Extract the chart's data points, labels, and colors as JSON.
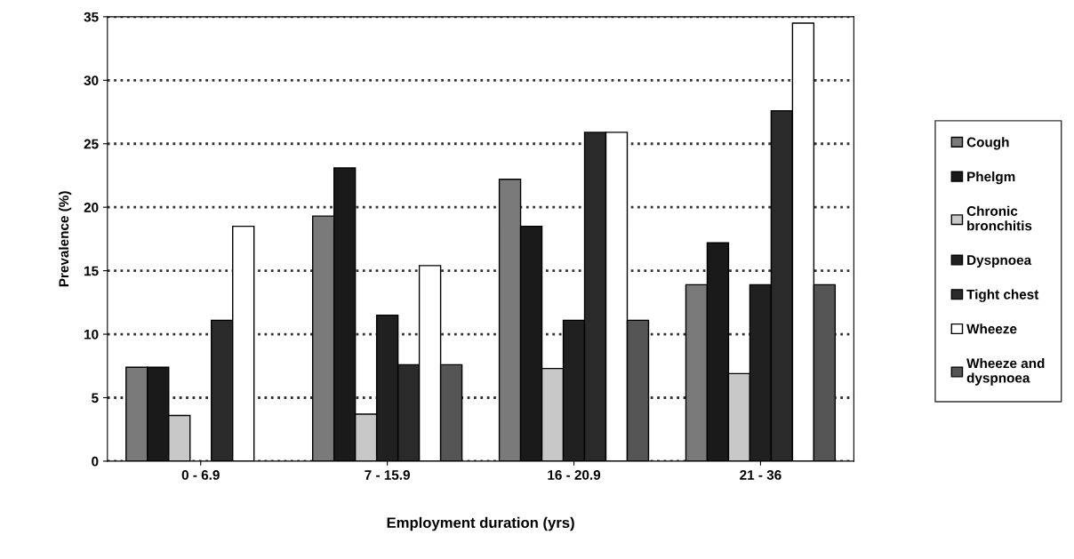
{
  "chart_data": {
    "type": "bar",
    "xlabel": "Employment duration (yrs)",
    "ylabel": "Prevalence (%)",
    "categories": [
      "0 - 6.9",
      "7 - 15.9",
      "16 - 20.9",
      "21 - 36"
    ],
    "series": [
      {
        "name": "Cough",
        "color": "#7a7a7a",
        "values": [
          7.4,
          19.3,
          22.2,
          13.9
        ]
      },
      {
        "name": "Phelgm",
        "color": "#1a1a1a",
        "values": [
          7.4,
          23.1,
          18.5,
          17.2
        ]
      },
      {
        "name": "Chronic bronchitis",
        "color": "#c8c8c8",
        "values": [
          3.6,
          3.7,
          7.3,
          6.9
        ]
      },
      {
        "name": "Dyspnoea",
        "color": "#202020",
        "values": [
          0,
          11.5,
          11.1,
          13.9
        ]
      },
      {
        "name": "Tight chest",
        "color": "#2a2a2a",
        "values": [
          11.1,
          7.6,
          25.9,
          27.6
        ]
      },
      {
        "name": "Wheeze",
        "color": "#ffffff",
        "values": [
          18.5,
          15.4,
          25.9,
          34.5
        ]
      },
      {
        "name": "Wheeze and dyspnoea",
        "color": "#555555",
        "values": [
          0,
          7.6,
          11.1,
          13.9
        ]
      }
    ],
    "ylim": [
      0,
      35
    ],
    "yticks": [
      0,
      5,
      10,
      15,
      20,
      25,
      30,
      35
    ],
    "grid": "y",
    "line_style": "dotted",
    "legend": "right"
  }
}
